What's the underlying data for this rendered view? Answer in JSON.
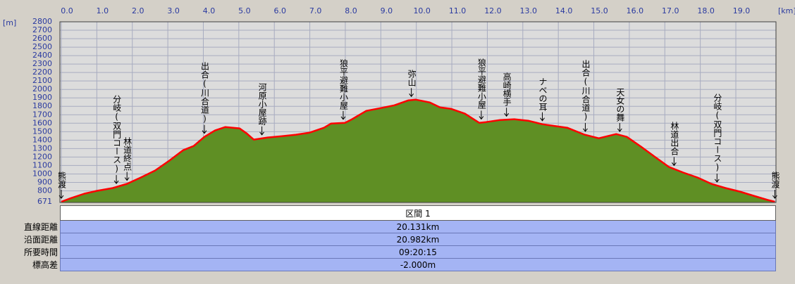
{
  "chart_data": {
    "type": "area",
    "ylabel": "[m]",
    "xlabel": "[km]",
    "x": [
      0,
      0.26,
      0.65,
      1.0,
      1.45,
      1.85,
      2.24,
      2.64,
      3.04,
      3.43,
      3.73,
      4.03,
      4.33,
      4.62,
      5.02,
      5.22,
      5.42,
      5.81,
      6.21,
      6.61,
      7.0,
      7.4,
      7.6,
      7.99,
      8.19,
      8.59,
      8.99,
      9.38,
      9.78,
      9.98,
      10.38,
      10.67,
      10.97,
      11.37,
      11.77,
      11.96,
      12.36,
      12.76,
      13.15,
      13.55,
      13.95,
      14.25,
      14.74,
      15.14,
      15.63,
      15.93,
      16.33,
      16.73,
      17.12,
      17.52,
      17.92,
      18.31,
      18.71,
      19.11,
      19.5,
      19.9,
      20.1
    ],
    "values": [
      671,
      712,
      767,
      800,
      833,
      883,
      958,
      1040,
      1157,
      1281,
      1331,
      1439,
      1514,
      1555,
      1539,
      1480,
      1406,
      1431,
      1447,
      1464,
      1489,
      1547,
      1597,
      1605,
      1647,
      1746,
      1779,
      1812,
      1871,
      1879,
      1846,
      1788,
      1771,
      1713,
      1605,
      1613,
      1638,
      1647,
      1630,
      1588,
      1564,
      1547,
      1464,
      1422,
      1472,
      1439,
      1323,
      1199,
      1082,
      1016,
      958,
      883,
      833,
      792,
      742,
      692,
      671
    ],
    "color": "#ff0000",
    "fill": "#5f8f24",
    "xlim": [
      0,
      20.131
    ],
    "ylim": [
      671,
      2800
    ],
    "xticks": [
      {
        "value": 0,
        "label": "0.0"
      },
      {
        "value": 1,
        "label": "1.0"
      },
      {
        "value": 2,
        "label": "2.0"
      },
      {
        "value": 3,
        "label": "3.0"
      },
      {
        "value": 4,
        "label": "4.0"
      },
      {
        "value": 5,
        "label": "5.0"
      },
      {
        "value": 6,
        "label": "6.0"
      },
      {
        "value": 7,
        "label": "7.0"
      },
      {
        "value": 8,
        "label": "8.0"
      },
      {
        "value": 9,
        "label": "9.0"
      },
      {
        "value": 10,
        "label": "10.0"
      },
      {
        "value": 11,
        "label": "11.0"
      },
      {
        "value": 12,
        "label": "12.0"
      },
      {
        "value": 13,
        "label": "13.0"
      },
      {
        "value": 14,
        "label": "14.0"
      },
      {
        "value": 15,
        "label": "15.0"
      },
      {
        "value": 16,
        "label": "16.0"
      },
      {
        "value": 17,
        "label": "17.0"
      },
      {
        "value": 18,
        "label": "18.0"
      },
      {
        "value": 19,
        "label": "19.0"
      }
    ],
    "yticks": [
      671,
      800,
      900,
      1000,
      1100,
      1200,
      1300,
      1400,
      1500,
      1600,
      1700,
      1800,
      1900,
      2000,
      2100,
      2200,
      2300,
      2400,
      2500,
      2600,
      2700,
      2800
    ],
    "grid": true,
    "annotations": [
      {
        "text": "熊渡",
        "x": 0
      },
      {
        "text": "分岐(双門コース)",
        "x": 1.55
      },
      {
        "text": "林道終点",
        "x": 1.85
      },
      {
        "text": "出合(川合道)",
        "x": 4.03
      },
      {
        "text": "河原小屋跡",
        "x": 5.65
      },
      {
        "text": "狼平避難小屋",
        "x": 7.94
      },
      {
        "text": "弥山",
        "x": 9.86
      },
      {
        "text": "狼平避難小屋",
        "x": 11.83
      },
      {
        "text": "高崎横手",
        "x": 12.54
      },
      {
        "text": "ナベの耳",
        "x": 13.55
      },
      {
        "text": "出合(川合道)",
        "x": 14.76
      },
      {
        "text": "天女の舞",
        "x": 15.73
      },
      {
        "text": "林道出合",
        "x": 17.26
      },
      {
        "text": "分岐(双門コース)",
        "x": 18.47
      },
      {
        "text": "熊渡",
        "x": 20.1
      }
    ]
  },
  "table": {
    "header": "区間 1",
    "rows": [
      [
        "直線距離",
        "20.131km"
      ],
      [
        "沿面距離",
        "20.982km"
      ],
      [
        "所要時間",
        "09:20:15"
      ],
      [
        "標高差",
        "-2.000m"
      ]
    ]
  }
}
